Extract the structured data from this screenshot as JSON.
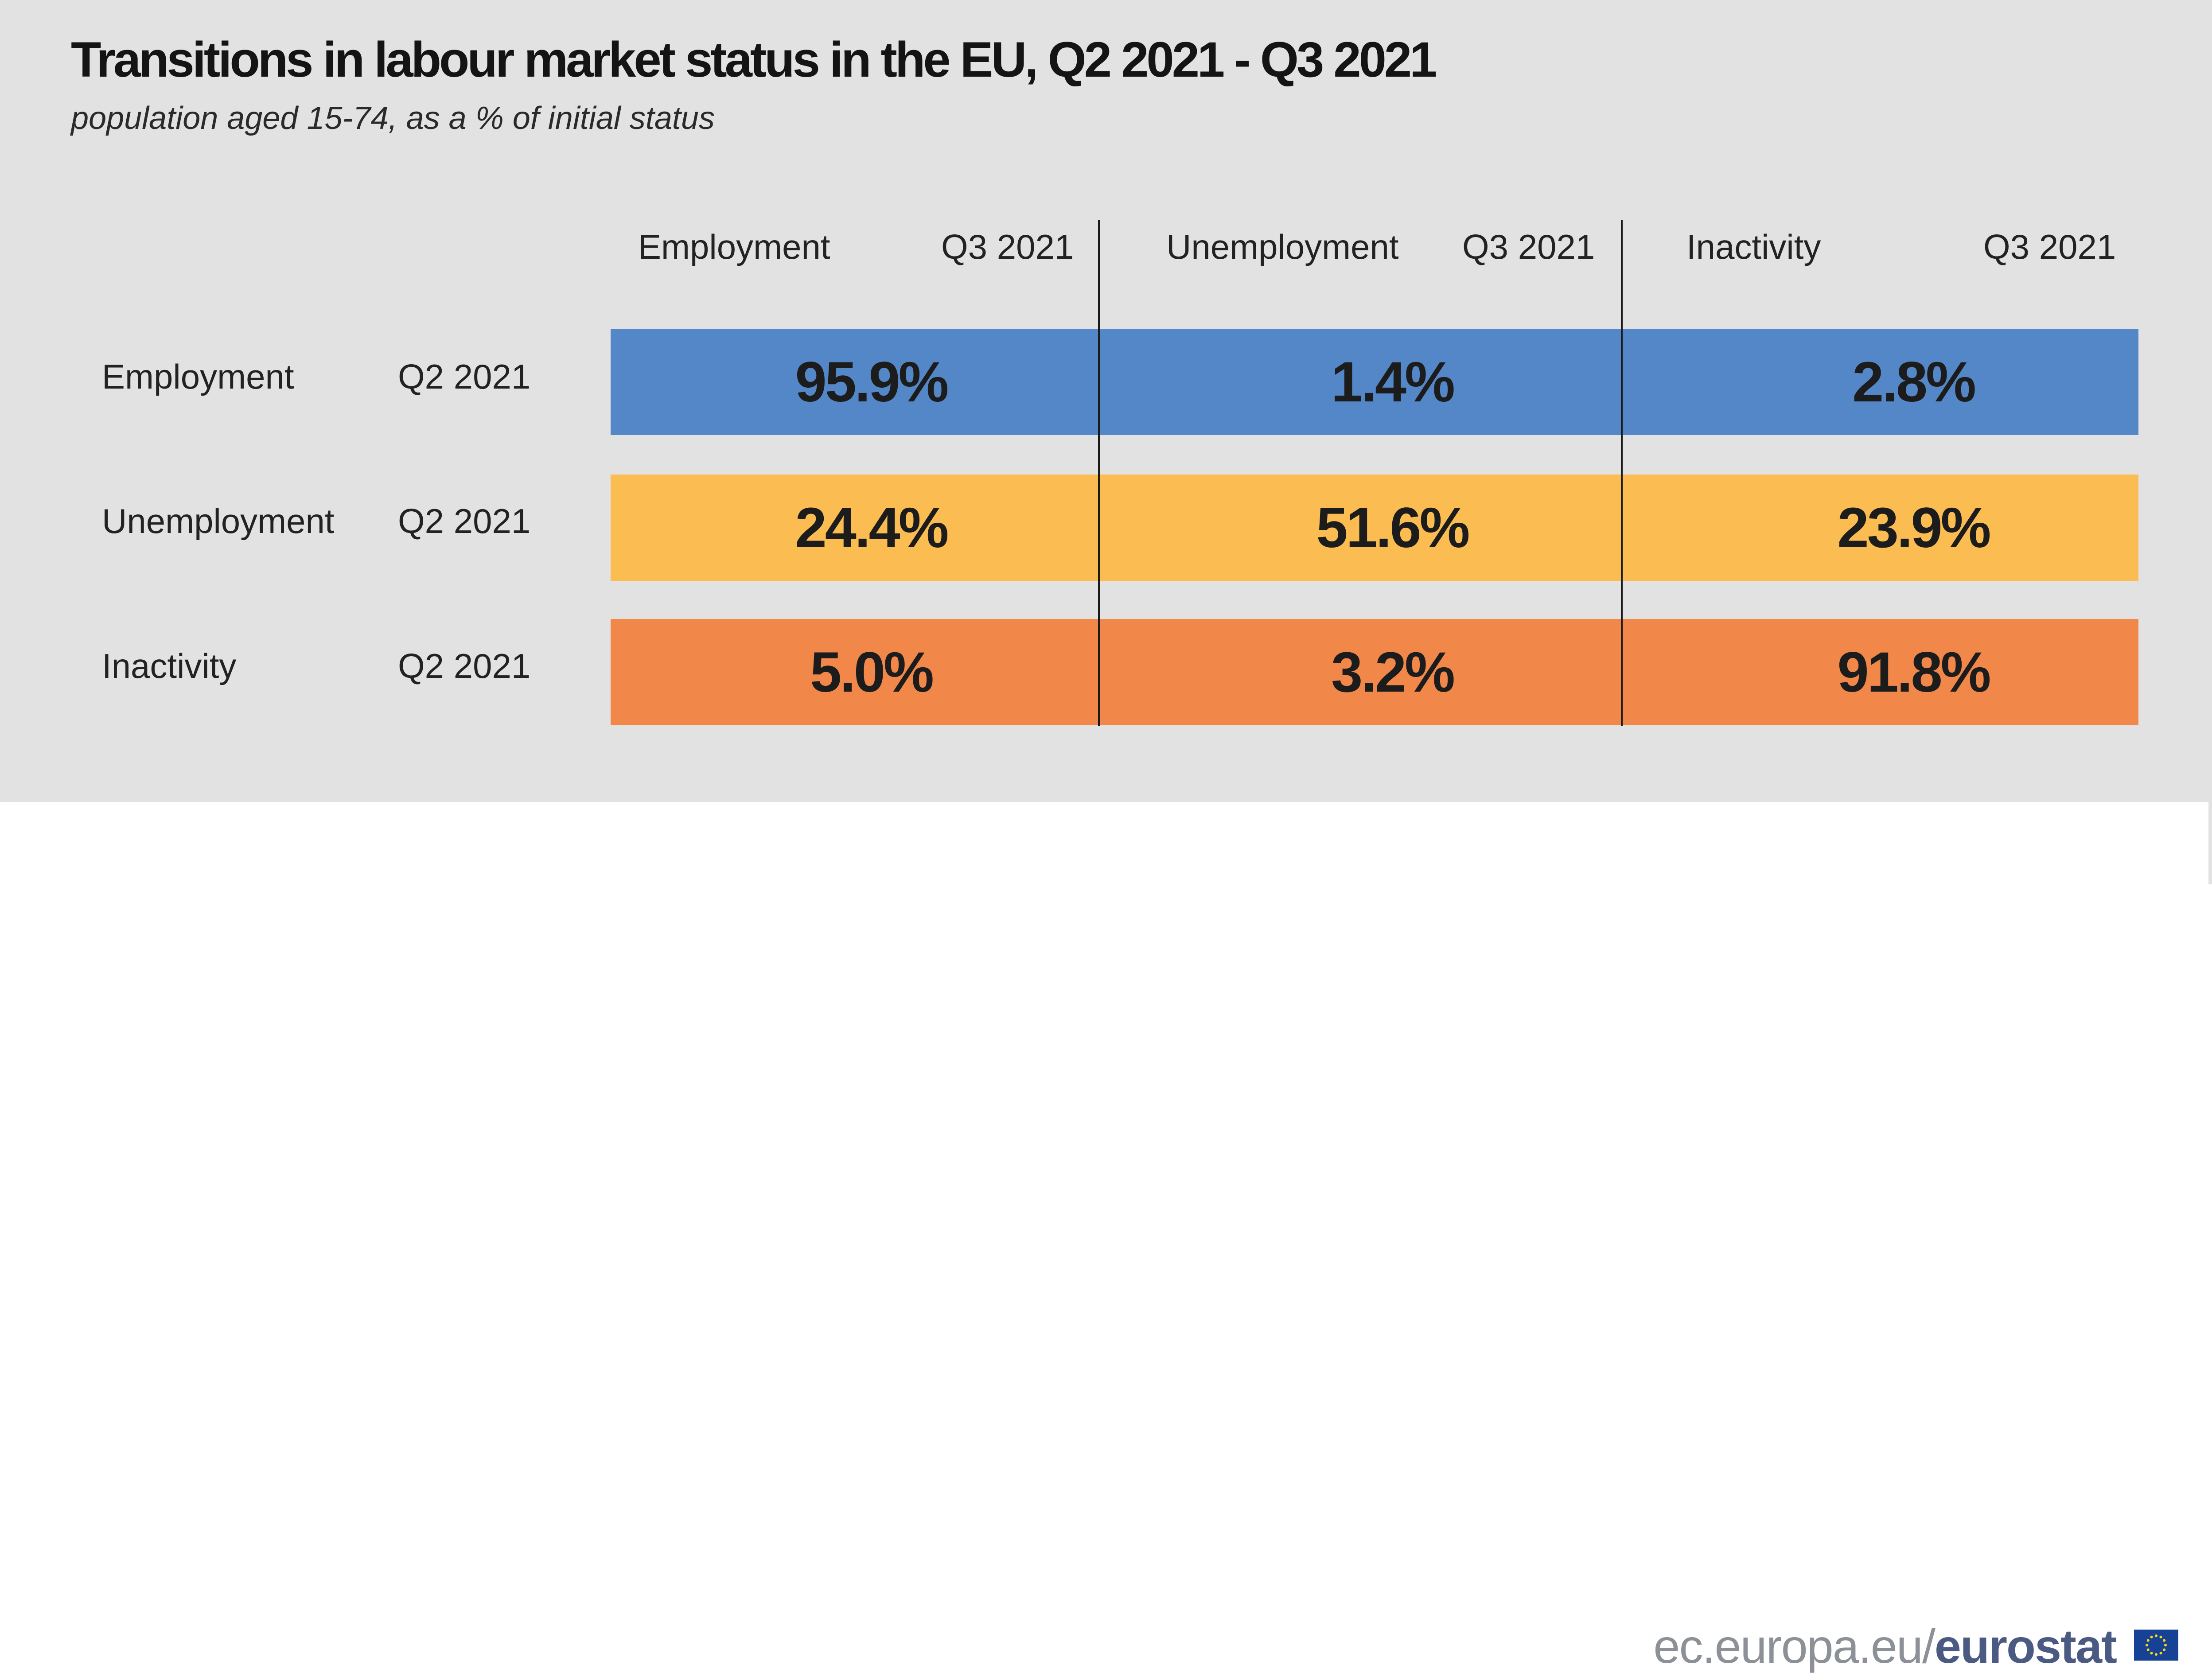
{
  "chart_data": {
    "type": "table",
    "title": "Transitions in labour market status in the EU, Q2 2021 - Q3 2021",
    "subtitle": "population aged 15-74, as a % of initial status",
    "columns": [
      {
        "status": "Employment",
        "period": "Q3 2021"
      },
      {
        "status": "Unemployment",
        "period": "Q3 2021"
      },
      {
        "status": "Inactivity",
        "period": "Q3 2021"
      }
    ],
    "rows": [
      {
        "status": "Employment",
        "period": "Q2 2021",
        "color": "#5487c8",
        "values": [
          "95.9%",
          "1.4%",
          "2.8%"
        ]
      },
      {
        "status": "Unemployment",
        "period": "Q2 2021",
        "color": "#fbbd51",
        "values": [
          "24.4%",
          "51.6%",
          "23.9%"
        ]
      },
      {
        "status": "Inactivity",
        "period": "Q2 2021",
        "color": "#f2874a",
        "values": [
          "5.0%",
          "3.2%",
          "91.8%"
        ]
      }
    ]
  },
  "footer": {
    "site": "ec.europa.eu/",
    "brand": "eurostat"
  }
}
